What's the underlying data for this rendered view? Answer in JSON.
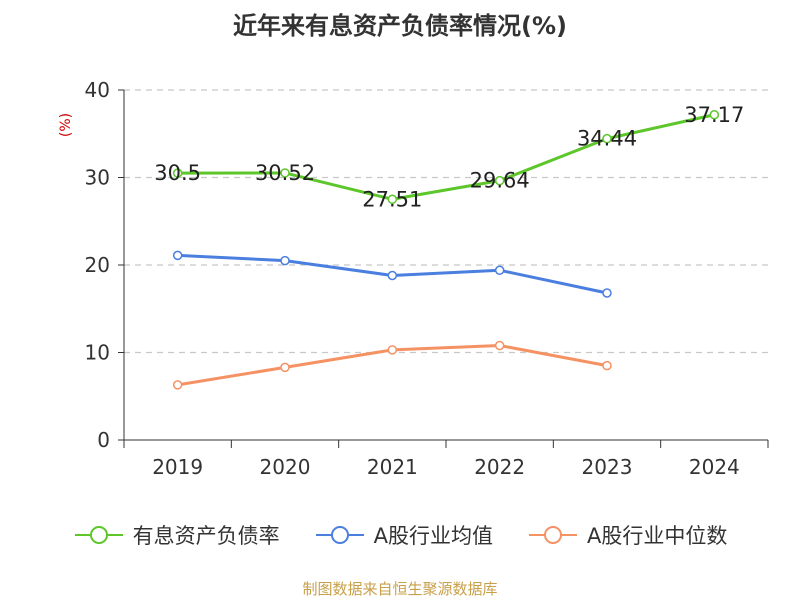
{
  "chart_data": {
    "type": "line",
    "title": "近年来有息资产负债率情况(%)",
    "ylabel": "(%)",
    "xlabel": "",
    "categories": [
      "2019",
      "2020",
      "2021",
      "2022",
      "2023",
      "2024"
    ],
    "ylim": [
      0,
      40
    ],
    "yticks": [
      0,
      10,
      20,
      30,
      40
    ],
    "grid": "horizontal-dashed",
    "legend_position": "bottom",
    "series": [
      {
        "name": "有息资产负债率",
        "color": "#5cc62a",
        "values": [
          30.5,
          30.52,
          27.51,
          29.64,
          34.44,
          37.17
        ],
        "labels": [
          "30.5",
          "30.52",
          "27.51",
          "29.64",
          "34.44",
          "37.17"
        ]
      },
      {
        "name": "A股行业均值",
        "color": "#4a7fe0",
        "values": [
          21.1,
          20.5,
          18.8,
          19.4,
          16.8,
          null
        ]
      },
      {
        "name": "A股行业中位数",
        "color": "#f59263",
        "values": [
          6.3,
          8.3,
          10.3,
          10.8,
          8.5,
          null
        ]
      }
    ]
  },
  "source": "制图数据来自恒生聚源数据库"
}
